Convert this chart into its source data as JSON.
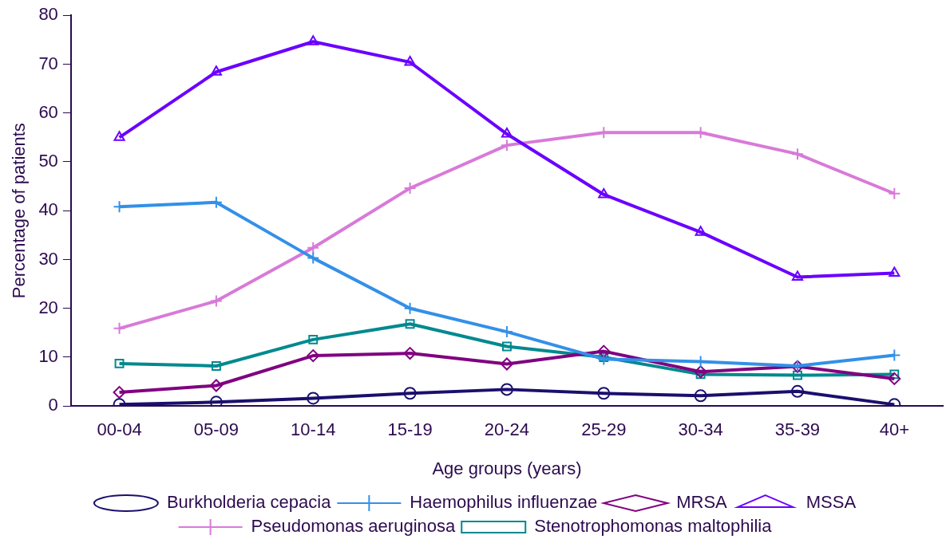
{
  "chart_data": {
    "type": "line",
    "xlabel": "Age groups (years)",
    "ylabel": "Percentage of patients",
    "categories": [
      "00-04",
      "05-09",
      "10-14",
      "15-19",
      "20-24",
      "25-29",
      "30-34",
      "35-39",
      "40+"
    ],
    "ylim": [
      0,
      80
    ],
    "yticks": [
      0,
      10,
      20,
      30,
      40,
      50,
      60,
      70,
      80
    ],
    "grid": false,
    "legend": "bottom",
    "line_style": "solid",
    "series": [
      {
        "name": "Burkholderia cepacia",
        "color": "#1a0f6e",
        "marker": "circle",
        "values": [
          0.3,
          0.8,
          1.6,
          2.6,
          3.4,
          2.6,
          2.1,
          3.0,
          0.3
        ]
      },
      {
        "name": "Haemophilus influenzae",
        "color": "#3390e8",
        "marker": "cross",
        "values": [
          40.8,
          41.7,
          30.3,
          20.0,
          15.2,
          9.6,
          9.1,
          8.2,
          10.4
        ]
      },
      {
        "name": "MRSA",
        "color": "#800080",
        "marker": "diamond",
        "values": [
          2.8,
          4.2,
          10.3,
          10.8,
          8.6,
          11.2,
          7.0,
          8.1,
          5.6
        ]
      },
      {
        "name": "MSSA",
        "color": "#6a00ff",
        "marker": "triangle",
        "values": [
          55.0,
          68.4,
          74.6,
          70.4,
          55.7,
          43.3,
          35.6,
          26.4,
          27.2
        ]
      },
      {
        "name": "Pseudomonas aeruginosa",
        "color": "#d87ad8",
        "marker": "cross",
        "values": [
          15.9,
          21.5,
          32.4,
          44.6,
          53.4,
          56.0,
          56.0,
          51.6,
          43.5
        ]
      },
      {
        "name": "Stenotrophomonas maltophilia",
        "color": "#00898f",
        "marker": "square",
        "values": [
          8.7,
          8.2,
          13.6,
          16.8,
          12.2,
          10.0,
          6.5,
          6.3,
          6.5
        ]
      }
    ]
  }
}
